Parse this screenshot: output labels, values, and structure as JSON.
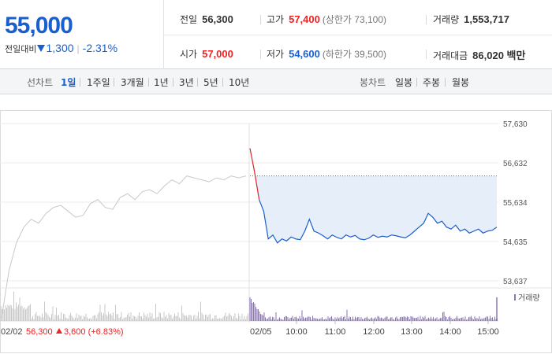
{
  "summary": {
    "price": "55,000",
    "change_label": "전일대비",
    "change_value": "1,300",
    "change_pct": "-2.31%"
  },
  "stats": {
    "prev_close": {
      "label": "전일",
      "value": "56,300"
    },
    "high": {
      "label": "고가",
      "value": "57,400",
      "sub": "(상한가 73,100)"
    },
    "volume": {
      "label": "거래량",
      "value": "1,553,717"
    },
    "open": {
      "label": "시가",
      "value": "57,000"
    },
    "low": {
      "label": "저가",
      "value": "54,600",
      "sub": "(하한가 39,500)"
    },
    "trade_value": {
      "label": "거래대금",
      "value": "86,020 백만"
    }
  },
  "tabs": {
    "line_label": "선차트",
    "line_items": [
      "1일",
      "1주일",
      "3개월",
      "1년",
      "3년",
      "5년",
      "10년"
    ],
    "candle_label": "봉차트",
    "candle_items": [
      "일봉",
      "주봉",
      "월봉"
    ],
    "selected": "1일"
  },
  "colors": {
    "up": "#e22222",
    "down": "#1a5fd0",
    "prev_day_line": "#c8c8c8",
    "fill": "#e6eefa",
    "volume_today": "#8a76b0",
    "volume_prev": "#c8c8c8"
  },
  "chart_data": {
    "type": "line",
    "y_ticks": [
      "57,630",
      "56,632",
      "55,634",
      "54,635",
      "53,637"
    ],
    "ylim": [
      53637,
      57630
    ],
    "x_ticks": [
      "02/02",
      "02/05",
      "10:00",
      "11:00",
      "12:00",
      "13:00",
      "14:00",
      "15:00"
    ],
    "reference_price": 56300,
    "prev_day": {
      "date": "02/02",
      "close": "56,300",
      "change": "3,600",
      "change_pct": "(+6.83%)",
      "values": [
        52700,
        53900,
        54600,
        55000,
        55200,
        55100,
        55350,
        55500,
        55550,
        55400,
        55250,
        55300,
        55600,
        55700,
        55500,
        55450,
        55750,
        55850,
        55700,
        55900,
        55950,
        55850,
        56050,
        56200,
        56100,
        56300,
        56250,
        56200,
        56150,
        56250,
        56200,
        56300,
        56250,
        56300
      ]
    },
    "today": {
      "date": "02/05",
      "open": 57000,
      "values": [
        57000,
        56400,
        55700,
        55400,
        54700,
        54800,
        54600,
        54700,
        54650,
        54750,
        54700,
        54680,
        54900,
        55200,
        54900,
        54850,
        54780,
        54700,
        54800,
        54740,
        54700,
        54800,
        54750,
        54790,
        54700,
        54680,
        54720,
        54800,
        54740,
        54770,
        54750,
        54800,
        54780,
        54750,
        54730,
        54800,
        54900,
        55000,
        55100,
        55350,
        55250,
        55100,
        55150,
        55000,
        54950,
        55050,
        54900,
        54950,
        54850,
        54900,
        54950,
        54850,
        54900,
        54920,
        55000
      ]
    },
    "volume_label": "거래량"
  }
}
